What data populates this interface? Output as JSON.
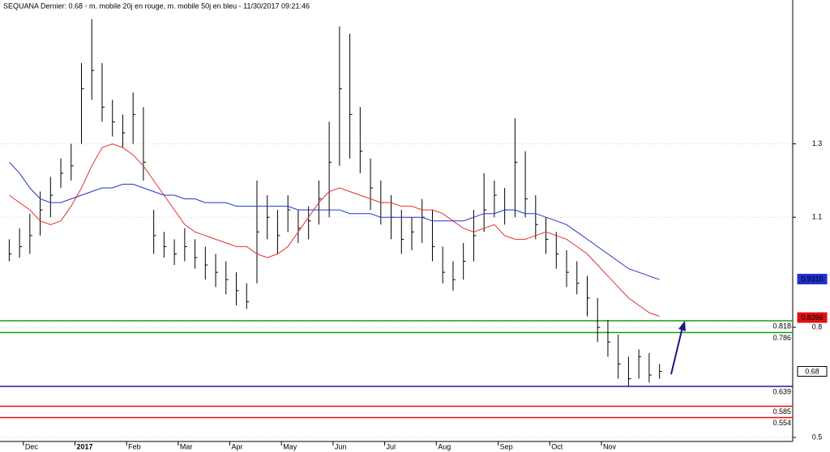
{
  "chart_data": {
    "type": "ohlc",
    "title": "SEQUANA Dernier: 0.68 - m. mobile 20j en rouge, m. mobile 50j en bleu - 11/30/2017 09:21:46",
    "categories": [
      null,
      null,
      "Dec",
      null,
      null,
      null,
      null,
      "2017",
      null,
      null,
      null,
      null,
      "Feb",
      null,
      null,
      null,
      null,
      "Mar",
      null,
      null,
      null,
      null,
      "Apr",
      null,
      null,
      null,
      null,
      "May",
      null,
      null,
      null,
      null,
      "Jun",
      null,
      null,
      null,
      null,
      "Jul",
      null,
      null,
      null,
      null,
      "Aug",
      null,
      null,
      null,
      null,
      null,
      "Sep",
      null,
      null,
      null,
      null,
      "Oct",
      null,
      null,
      null,
      null,
      "Nov",
      null,
      null,
      null,
      null,
      null
    ],
    "close": [
      1.0,
      1.02,
      1.05,
      1.12,
      1.16,
      1.22,
      1.24,
      1.45,
      1.5,
      1.4,
      1.36,
      1.33,
      1.38,
      1.25,
      1.05,
      1.02,
      1.0,
      1.02,
      0.99,
      0.97,
      0.95,
      0.93,
      0.9,
      0.87,
      1.06,
      1.1,
      1.05,
      1.12,
      1.07,
      1.09,
      1.15,
      1.25,
      1.45,
      1.38,
      1.28,
      1.18,
      1.14,
      1.1,
      1.04,
      1.06,
      1.1,
      1.02,
      0.95,
      0.93,
      0.98,
      1.05,
      1.12,
      1.16,
      1.12,
      1.25,
      1.15,
      1.08,
      1.04,
      1.0,
      0.95,
      0.92,
      0.88,
      0.8,
      0.76,
      0.7,
      0.66,
      0.72,
      0.67,
      0.68
    ],
    "high": [
      1.04,
      1.07,
      1.11,
      1.17,
      1.21,
      1.26,
      1.3,
      1.52,
      1.64,
      1.52,
      1.42,
      1.38,
      1.44,
      1.4,
      1.12,
      1.06,
      1.04,
      1.07,
      1.04,
      1.02,
      1.0,
      0.98,
      0.95,
      0.92,
      1.2,
      1.16,
      1.12,
      1.16,
      1.12,
      1.13,
      1.2,
      1.36,
      1.62,
      1.6,
      1.4,
      1.26,
      1.2,
      1.16,
      1.12,
      1.1,
      1.15,
      1.12,
      1.02,
      0.98,
      1.03,
      1.12,
      1.22,
      1.2,
      1.18,
      1.37,
      1.28,
      1.16,
      1.1,
      1.06,
      1.01,
      0.98,
      0.94,
      0.88,
      0.82,
      0.78,
      0.72,
      0.74,
      0.73,
      0.7
    ],
    "low": [
      0.98,
      0.99,
      1.0,
      1.05,
      1.1,
      1.18,
      1.2,
      1.3,
      1.42,
      1.36,
      1.32,
      1.29,
      1.3,
      1.2,
      1.0,
      0.99,
      0.97,
      0.98,
      0.96,
      0.93,
      0.91,
      0.89,
      0.86,
      0.85,
      0.92,
      1.04,
      1.0,
      1.06,
      1.03,
      1.04,
      1.08,
      1.1,
      1.24,
      1.26,
      1.22,
      1.12,
      1.08,
      1.04,
      1.0,
      1.01,
      1.03,
      0.98,
      0.92,
      0.9,
      0.93,
      0.98,
      1.06,
      1.1,
      1.08,
      1.1,
      1.1,
      1.04,
      1.0,
      0.96,
      0.91,
      0.89,
      0.83,
      0.76,
      0.72,
      0.66,
      0.64,
      0.66,
      0.65,
      0.66
    ],
    "series": [
      {
        "color": "#e53030",
        "values": [
          1.16,
          1.14,
          1.12,
          1.09,
          1.08,
          1.09,
          1.13,
          1.18,
          1.24,
          1.29,
          1.3,
          1.29,
          1.27,
          1.24,
          1.2,
          1.16,
          1.12,
          1.08,
          1.06,
          1.05,
          1.04,
          1.03,
          1.02,
          1.02,
          1.0,
          0.99,
          1.0,
          1.02,
          1.06,
          1.1,
          1.14,
          1.17,
          1.18,
          1.17,
          1.16,
          1.15,
          1.14,
          1.14,
          1.13,
          1.13,
          1.12,
          1.12,
          1.11,
          1.09,
          1.07,
          1.06,
          1.07,
          1.08,
          1.05,
          1.04,
          1.04,
          1.05,
          1.06,
          1.05,
          1.04,
          1.02,
          1.0,
          0.97,
          0.94,
          0.91,
          0.88,
          0.86,
          0.84,
          0.83
        ]
      },
      {
        "color": "#2233cc",
        "values": [
          1.25,
          1.22,
          1.18,
          1.15,
          1.14,
          1.14,
          1.15,
          1.16,
          1.17,
          1.18,
          1.18,
          1.19,
          1.19,
          1.18,
          1.17,
          1.16,
          1.16,
          1.15,
          1.15,
          1.14,
          1.14,
          1.14,
          1.13,
          1.13,
          1.13,
          1.13,
          1.13,
          1.13,
          1.12,
          1.12,
          1.12,
          1.12,
          1.12,
          1.11,
          1.11,
          1.11,
          1.1,
          1.1,
          1.1,
          1.1,
          1.1,
          1.09,
          1.09,
          1.09,
          1.09,
          1.1,
          1.11,
          1.11,
          1.12,
          1.12,
          1.11,
          1.11,
          1.1,
          1.09,
          1.08,
          1.06,
          1.04,
          1.02,
          1.0,
          0.98,
          0.96,
          0.95,
          0.94,
          0.93
        ]
      }
    ],
    "levels": [
      {
        "value": 0.818,
        "color": "#1a9a1a"
      },
      {
        "value": 0.786,
        "color": "#1a9a1a"
      },
      {
        "value": 0.639,
        "color": "#1a1aa0"
      },
      {
        "value": 0.585,
        "color": "#e01010"
      },
      {
        "value": 0.554,
        "color": "#e01010"
      }
    ],
    "last_values": [
      {
        "value": 0.9315,
        "color": "#1f2fd0"
      },
      {
        "value": 0.8266,
        "color": "#e01010"
      },
      {
        "value": 0.68,
        "color": "#000000"
      }
    ],
    "ylim": [
      0.489,
      1.692
    ],
    "yticks": [
      0.5,
      0.8,
      1.1,
      1.3
    ],
    "grid": true,
    "bar_color": "#000000"
  }
}
